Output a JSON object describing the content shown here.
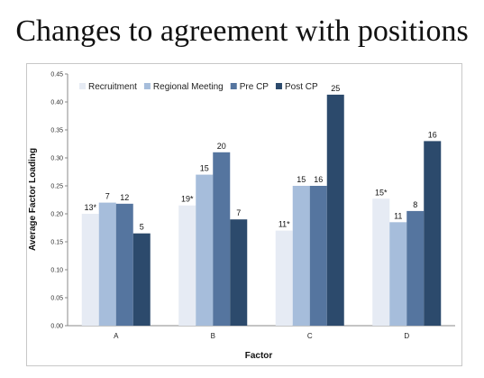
{
  "page": {
    "title": "Changes to agreement with positions"
  },
  "chart_data": {
    "type": "bar",
    "categories": [
      "A",
      "B",
      "C",
      "D"
    ],
    "series": [
      {
        "name": "Recruitment",
        "color": "#e6ebf4",
        "values": [
          0.2,
          0.215,
          0.17,
          0.227
        ],
        "labels": [
          "13*",
          "19*",
          "11*",
          "15*"
        ]
      },
      {
        "name": "Regional Meeting",
        "color": "#a6bddb",
        "values": [
          0.22,
          0.27,
          0.25,
          0.185
        ],
        "labels": [
          "7",
          "15",
          "15",
          "11"
        ]
      },
      {
        "name": "Pre CP",
        "color": "#55759f",
        "values": [
          0.218,
          0.31,
          0.25,
          0.205
        ],
        "labels": [
          "12",
          "20",
          "16",
          "8"
        ]
      },
      {
        "name": "Post CP",
        "color": "#2c4a6c",
        "values": [
          0.165,
          0.19,
          0.413,
          0.33
        ],
        "labels": [
          "5",
          "7",
          "25",
          "16"
        ]
      }
    ],
    "ylabel": "Average Factor Loading",
    "xlabel": "Factor",
    "ylim": [
      0,
      0.45
    ],
    "yticks": [
      "0.00",
      "0.05",
      "0.10",
      "0.15",
      "0.20",
      "0.25",
      "0.30",
      "0.35",
      "0.40",
      "0.45"
    ],
    "grid": false,
    "legend": "top-left"
  }
}
